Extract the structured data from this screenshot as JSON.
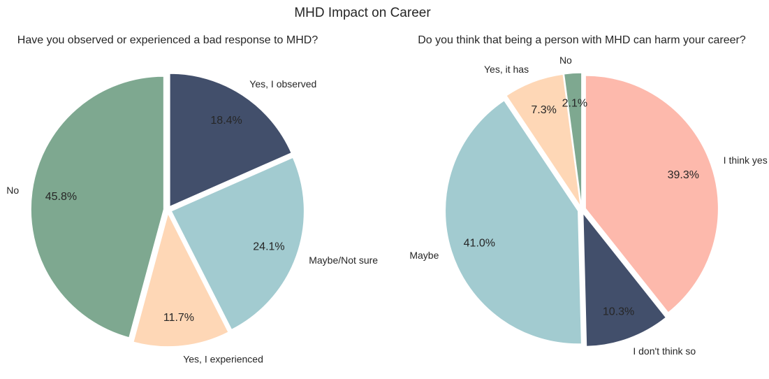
{
  "figure": {
    "title": "MHD Impact on Career"
  },
  "chart_data": [
    {
      "type": "pie",
      "title": "Have you observed or experienced a bad response to MHD?",
      "slices": [
        {
          "label": "Yes, I observed",
          "value": 18.4,
          "pct_label": "18.4%",
          "color": "#424f6b"
        },
        {
          "label": "Maybe/Not sure",
          "value": 24.1,
          "pct_label": "24.1%",
          "color": "#a2cbd0"
        },
        {
          "label": "Yes, I experienced",
          "value": 11.7,
          "pct_label": "11.7%",
          "color": "#fed7b6"
        },
        {
          "label": "No",
          "value": 45.8,
          "pct_label": "45.8%",
          "color": "#7ea890"
        }
      ]
    },
    {
      "type": "pie",
      "title": "Do you think that being a person with MHD can harm your career?",
      "slices": [
        {
          "label": "I think yes",
          "value": 39.3,
          "pct_label": "39.3%",
          "color": "#fdb9ac"
        },
        {
          "label": "I don't think so",
          "value": 10.3,
          "pct_label": "10.3%",
          "color": "#424f6b"
        },
        {
          "label": "Maybe",
          "value": 41.0,
          "pct_label": "41.0%",
          "color": "#a2cbd0"
        },
        {
          "label": "Yes, it has",
          "value": 7.3,
          "pct_label": "7.3%",
          "color": "#fed7b6"
        },
        {
          "label": "No",
          "value": 2.1,
          "pct_label": "2.1%",
          "color": "#7ea890"
        }
      ]
    }
  ]
}
